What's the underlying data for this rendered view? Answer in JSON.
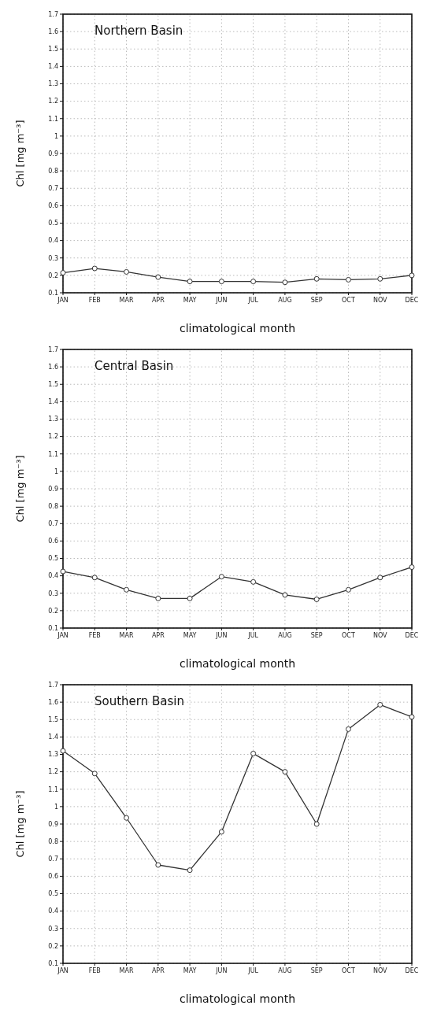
{
  "chart_data": [
    {
      "type": "line",
      "title": "Northern Basin",
      "xlabel": "climatological month",
      "ylabel": "Chl  [mg m⁻³]",
      "categories": [
        "JAN",
        "FEB",
        "MAR",
        "APR",
        "MAY",
        "JUN",
        "JUL",
        "AUG",
        "SEP",
        "OCT",
        "NOV",
        "DEC"
      ],
      "series": [
        {
          "color": "#333333",
          "values": [
            0.215,
            0.24,
            0.22,
            0.19,
            0.165,
            0.165,
            0.165,
            0.16,
            0.18,
            0.175,
            0.18,
            0.2
          ]
        }
      ],
      "ylim": [
        0.1,
        1.7
      ],
      "yticks": [
        0.1,
        0.2,
        0.3,
        0.4,
        0.5,
        0.6,
        0.7,
        0.8,
        0.9,
        1,
        1.1,
        1.2,
        1.3,
        1.4,
        1.5,
        1.6,
        1.7
      ],
      "grid": true,
      "marker": "circle"
    },
    {
      "type": "line",
      "title": "Central Basin",
      "xlabel": "climatological month",
      "ylabel": "Chl  [mg m⁻³]",
      "categories": [
        "JAN",
        "FEB",
        "MAR",
        "APR",
        "MAY",
        "JUN",
        "JUL",
        "AUG",
        "SEP",
        "OCT",
        "NOV",
        "DEC"
      ],
      "series": [
        {
          "color": "#333333",
          "values": [
            0.425,
            0.39,
            0.32,
            0.27,
            0.27,
            0.395,
            0.365,
            0.29,
            0.265,
            0.32,
            0.39,
            0.45
          ]
        }
      ],
      "ylim": [
        0.1,
        1.7
      ],
      "yticks": [
        0.1,
        0.2,
        0.3,
        0.4,
        0.5,
        0.6,
        0.7,
        0.8,
        0.9,
        1,
        1.1,
        1.2,
        1.3,
        1.4,
        1.5,
        1.6,
        1.7
      ],
      "grid": true,
      "marker": "circle"
    },
    {
      "type": "line",
      "title": "Southern Basin",
      "xlabel": "climatological month",
      "ylabel": "Chl  [mg m⁻³]",
      "categories": [
        "JAN",
        "FEB",
        "MAR",
        "APR",
        "MAY",
        "JUN",
        "JUL",
        "AUG",
        "SEP",
        "OCT",
        "NOV",
        "DEC"
      ],
      "series": [
        {
          "color": "#333333",
          "values": [
            1.32,
            1.19,
            0.935,
            0.665,
            0.635,
            0.855,
            1.305,
            1.2,
            0.9,
            1.445,
            1.585,
            1.515
          ]
        }
      ],
      "ylim": [
        0.1,
        1.7
      ],
      "yticks": [
        0.1,
        0.2,
        0.3,
        0.4,
        0.5,
        0.6,
        0.7,
        0.8,
        0.9,
        1,
        1.1,
        1.2,
        1.3,
        1.4,
        1.5,
        1.6,
        1.7
      ],
      "grid": true,
      "marker": "circle"
    }
  ]
}
